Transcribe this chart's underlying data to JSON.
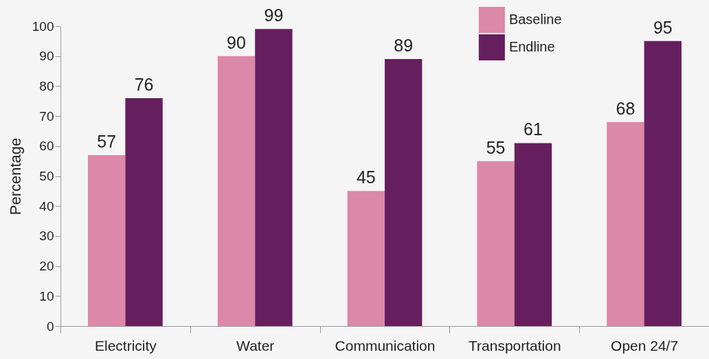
{
  "chart_data": {
    "type": "bar",
    "ylabel": "Percentage",
    "categories": [
      "Electricity",
      "Water",
      "Communication",
      "Transportation",
      "Open 24/7"
    ],
    "series": [
      {
        "name": "Baseline",
        "color": "#dc88a8",
        "values": [
          57,
          90,
          45,
          55,
          68
        ]
      },
      {
        "name": "Endline",
        "color": "#661f5e",
        "values": [
          76,
          99,
          89,
          61,
          95
        ]
      }
    ],
    "ylim": [
      0,
      100
    ],
    "yticks": [
      0,
      10,
      20,
      30,
      40,
      50,
      60,
      70,
      80,
      90,
      100
    ],
    "data_labels": true,
    "legend": "top",
    "grid": false
  }
}
